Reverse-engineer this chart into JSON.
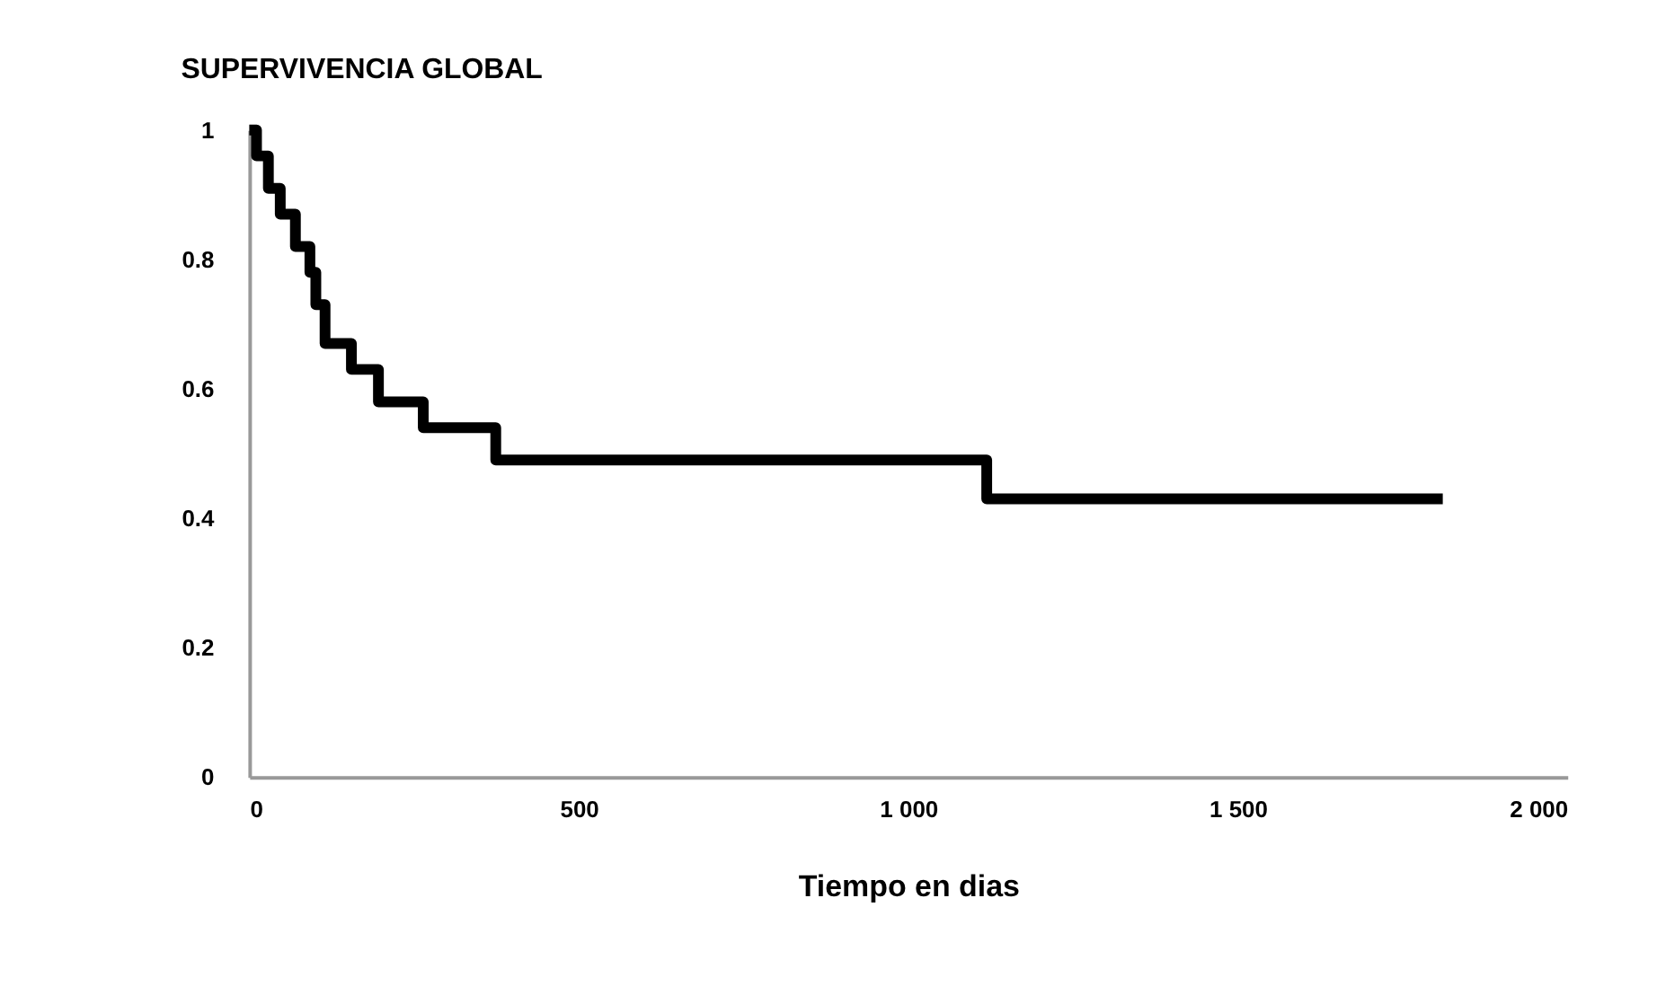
{
  "chart_data": {
    "type": "step",
    "title": "SUPERVIVENCIA GLOBAL",
    "xlabel": "Tiempo en dias",
    "x": [
      0,
      11,
      29,
      47,
      70,
      92,
      101,
      115,
      155,
      196,
      264,
      374,
      1119,
      1811
    ],
    "series": [
      {
        "color": "#000000",
        "values": [
          1,
          0.96,
          0.91,
          0.87,
          0.82,
          0.78,
          0.73,
          0.67,
          0.63,
          0.58,
          0.54,
          0.49,
          0.43,
          0.43
        ]
      }
    ],
    "xlim": [
      0,
      2000
    ],
    "xticks": [
      0,
      500,
      {
        "value": 1000,
        "label": "1 000"
      },
      {
        "value": 1500,
        "label": "1 500"
      },
      {
        "value": 2000,
        "label": "2 000"
      }
    ],
    "ylim": [
      0,
      1
    ],
    "yticks": [
      0,
      0.2,
      0.4,
      0.6,
      0.8,
      1
    ],
    "grid": false,
    "marker": "none",
    "line_style": "solid"
  }
}
